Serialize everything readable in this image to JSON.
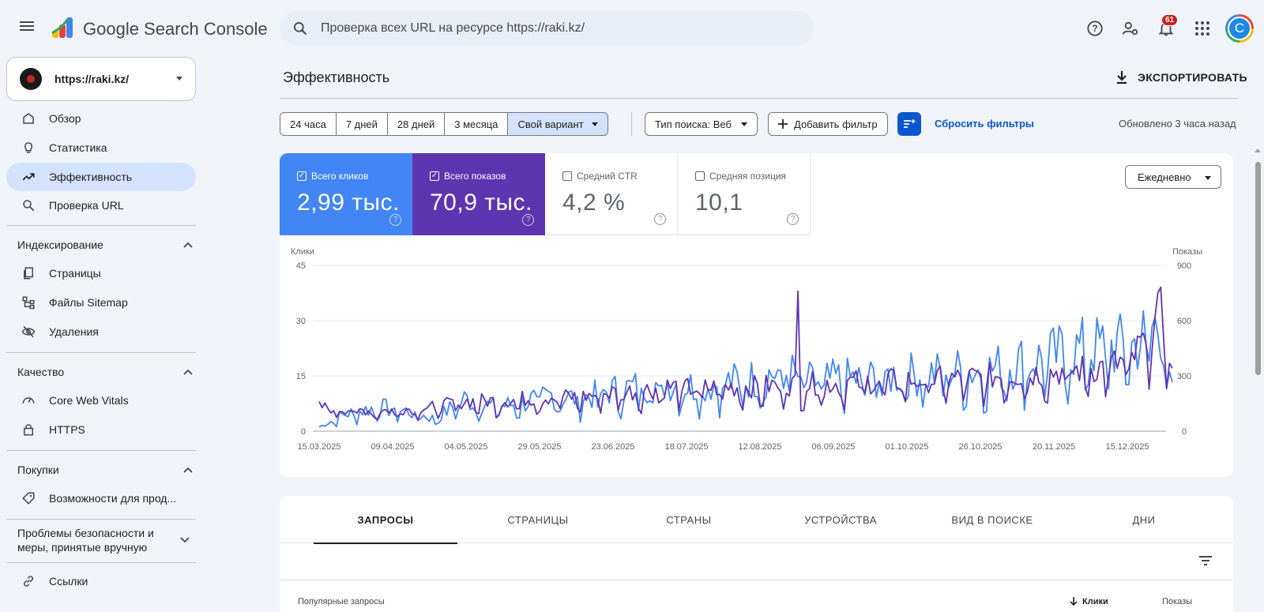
{
  "header": {
    "brand": "Google Search Console",
    "search_placeholder": "Проверка всех URL на ресурсе https://raki.kz/",
    "notification_count": "61",
    "avatar_letter": "C"
  },
  "sidebar": {
    "property": "https://raki.kz/",
    "items": [
      {
        "label": "Обзор",
        "icon": "home-icon"
      },
      {
        "label": "Статистика",
        "icon": "lightbulb-icon"
      },
      {
        "label": "Эффективность",
        "icon": "trending-up-icon",
        "active": true
      },
      {
        "label": "Проверка URL",
        "icon": "search-icon"
      }
    ],
    "sections": [
      {
        "title": "Индексирование",
        "items": [
          {
            "label": "Страницы",
            "icon": "pages-icon"
          },
          {
            "label": "Файлы Sitemap",
            "icon": "sitemap-icon"
          },
          {
            "label": "Удаления",
            "icon": "eye-off-icon"
          }
        ]
      },
      {
        "title": "Качество",
        "items": [
          {
            "label": "Core Web Vitals",
            "icon": "gauge-icon"
          },
          {
            "label": "HTTPS",
            "icon": "lock-icon"
          }
        ]
      },
      {
        "title": "Покупки",
        "items": [
          {
            "label": "Возможности для прод...",
            "icon": "tag-icon"
          }
        ]
      },
      {
        "title": "Проблемы безопасности и меры, принятые вручную",
        "items": []
      }
    ],
    "links_label": "Ссылки"
  },
  "main": {
    "title": "Эффективность",
    "export_label": "ЭКСПОРТИРОВАТЬ",
    "date_chips": [
      "24 часа",
      "7 дней",
      "28 дней",
      "3 месяца",
      "Свой вариант"
    ],
    "search_type": "Тип поиска: Веб",
    "add_filter": "Добавить фильтр",
    "reset_filters": "Сбросить фильтры",
    "updated": "Обновлено 3 часа назад",
    "period": "Ежедневно",
    "metrics": [
      {
        "label": "Всего кликов",
        "value": "2,99 тыс.",
        "checked": true,
        "color": "#4285f4"
      },
      {
        "label": "Всего показов",
        "value": "70,9 тыс.",
        "checked": true,
        "color": "#5e35b1"
      },
      {
        "label": "Средний CTR",
        "value": "4,2 %",
        "checked": false
      },
      {
        "label": "Средняя позиция",
        "value": "10,1",
        "checked": false
      }
    ],
    "tabs": [
      "ЗАПРОСЫ",
      "СТРАНИЦЫ",
      "СТРАНЫ",
      "УСТРОЙСТВА",
      "ВИД В ПОИСКЕ",
      "ДНИ"
    ],
    "table_headers": {
      "query": "Популярные запросы",
      "clicks": "Клики",
      "impressions": "Показы"
    }
  },
  "chart_data": {
    "type": "line",
    "ylabel_left": "Клики",
    "ylabel_right": "Показы",
    "yticks_left": [
      "0",
      "15",
      "30",
      "45"
    ],
    "yticks_right": [
      "0",
      "300",
      "600",
      "900"
    ],
    "ylim_left": [
      0,
      45
    ],
    "ylim_right": [
      0,
      900
    ],
    "xticks": [
      "15.03.2025",
      "09.04.2025",
      "04.05.2025",
      "29.05.2025",
      "23.06.2025",
      "18.07.2025",
      "12.08.2025",
      "06.09.2025",
      "01.10.2025",
      "26.10.2025",
      "20.11.2025",
      "15.12.2025"
    ],
    "series": [
      {
        "name": "Клики",
        "axis": "left",
        "color": "#4285f4",
        "keypoints": [
          [
            0,
            1
          ],
          [
            8,
            4
          ],
          [
            20,
            6
          ],
          [
            30,
            5
          ],
          [
            40,
            3
          ],
          [
            50,
            8
          ],
          [
            60,
            6
          ],
          [
            70,
            7
          ],
          [
            80,
            9
          ],
          [
            90,
            8
          ],
          [
            100,
            10
          ],
          [
            110,
            11
          ],
          [
            120,
            12
          ],
          [
            130,
            11
          ],
          [
            140,
            12
          ],
          [
            150,
            13
          ],
          [
            160,
            15
          ],
          [
            170,
            12
          ],
          [
            180,
            13
          ],
          [
            190,
            13
          ],
          [
            200,
            14
          ],
          [
            210,
            14
          ],
          [
            220,
            15
          ],
          [
            230,
            15
          ],
          [
            240,
            17
          ],
          [
            250,
            18
          ],
          [
            260,
            20
          ],
          [
            270,
            21
          ],
          [
            280,
            21
          ],
          [
            290,
            27
          ],
          [
            294,
            10
          ]
        ]
      },
      {
        "name": "Показы",
        "axis": "right",
        "color": "#5e35b1",
        "keypoints": [
          [
            0,
            120
          ],
          [
            8,
            110
          ],
          [
            20,
            100
          ],
          [
            30,
            110
          ],
          [
            40,
            120
          ],
          [
            50,
            150
          ],
          [
            60,
            150
          ],
          [
            70,
            160
          ],
          [
            80,
            170
          ],
          [
            90,
            170
          ],
          [
            100,
            190
          ],
          [
            110,
            200
          ],
          [
            120,
            220
          ],
          [
            130,
            210
          ],
          [
            140,
            220
          ],
          [
            150,
            220
          ],
          [
            160,
            230
          ],
          [
            170,
            235
          ],
          [
            180,
            240
          ],
          [
            190,
            245
          ],
          [
            200,
            250
          ],
          [
            210,
            255
          ],
          [
            220,
            260
          ],
          [
            230,
            270
          ],
          [
            240,
            280
          ],
          [
            250,
            290
          ],
          [
            260,
            300
          ],
          [
            270,
            320
          ],
          [
            280,
            350
          ],
          [
            290,
            570
          ],
          [
            294,
            350
          ]
        ],
        "spikes": [
          [
            165,
            760
          ]
        ]
      }
    ]
  }
}
